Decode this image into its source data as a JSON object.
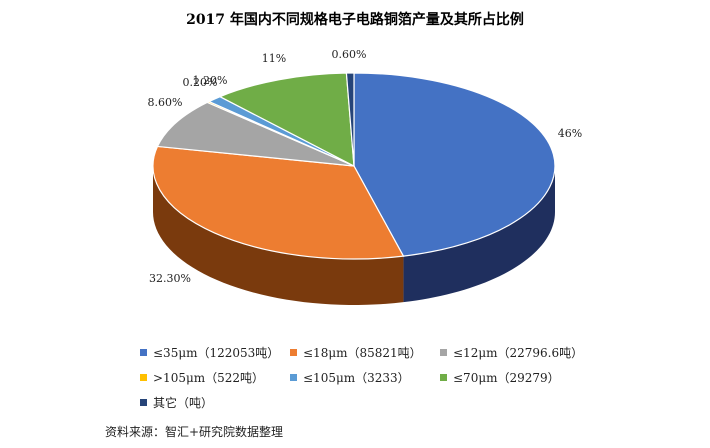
{
  "chart_data": {
    "type": "pie",
    "title": "2017 年国内不同规格电子电路铜箔产量及其所占比例",
    "slices": [
      {
        "label": "≤35μm（122053吨）",
        "value": 46,
        "pct_label": "46%",
        "color": "#4472c4",
        "side": "#1f2f5e"
      },
      {
        "label": "≤18μm（85821吨）",
        "value": 32.3,
        "pct_label": "32.30%",
        "color": "#ed7d31",
        "side": "#7a3a0d"
      },
      {
        "label": "≤12μm（22796.6吨）",
        "value": 8.6,
        "pct_label": "8.60%",
        "color": "#a5a5a5",
        "side": "#555555"
      },
      {
        "label": ">105μm（522吨）",
        "value": 0.2,
        "pct_label": "0.20%",
        "color": "#ffc000",
        "side": "#806000"
      },
      {
        "label": "≤105μm（3233）",
        "value": 1.2,
        "pct_label": "1.20%",
        "color": "#5b9bd5",
        "side": "#2a4f70"
      },
      {
        "label": "≤70μm（29279）",
        "value": 11,
        "pct_label": "11%",
        "color": "#70ad47",
        "side": "#3a5c24"
      },
      {
        "label": "其它（吨）",
        "value": 0.6,
        "pct_label": "0.60%",
        "color": "#264478",
        "side": "#13223c"
      }
    ]
  },
  "source": "资料来源：智汇+研究院数据整理"
}
